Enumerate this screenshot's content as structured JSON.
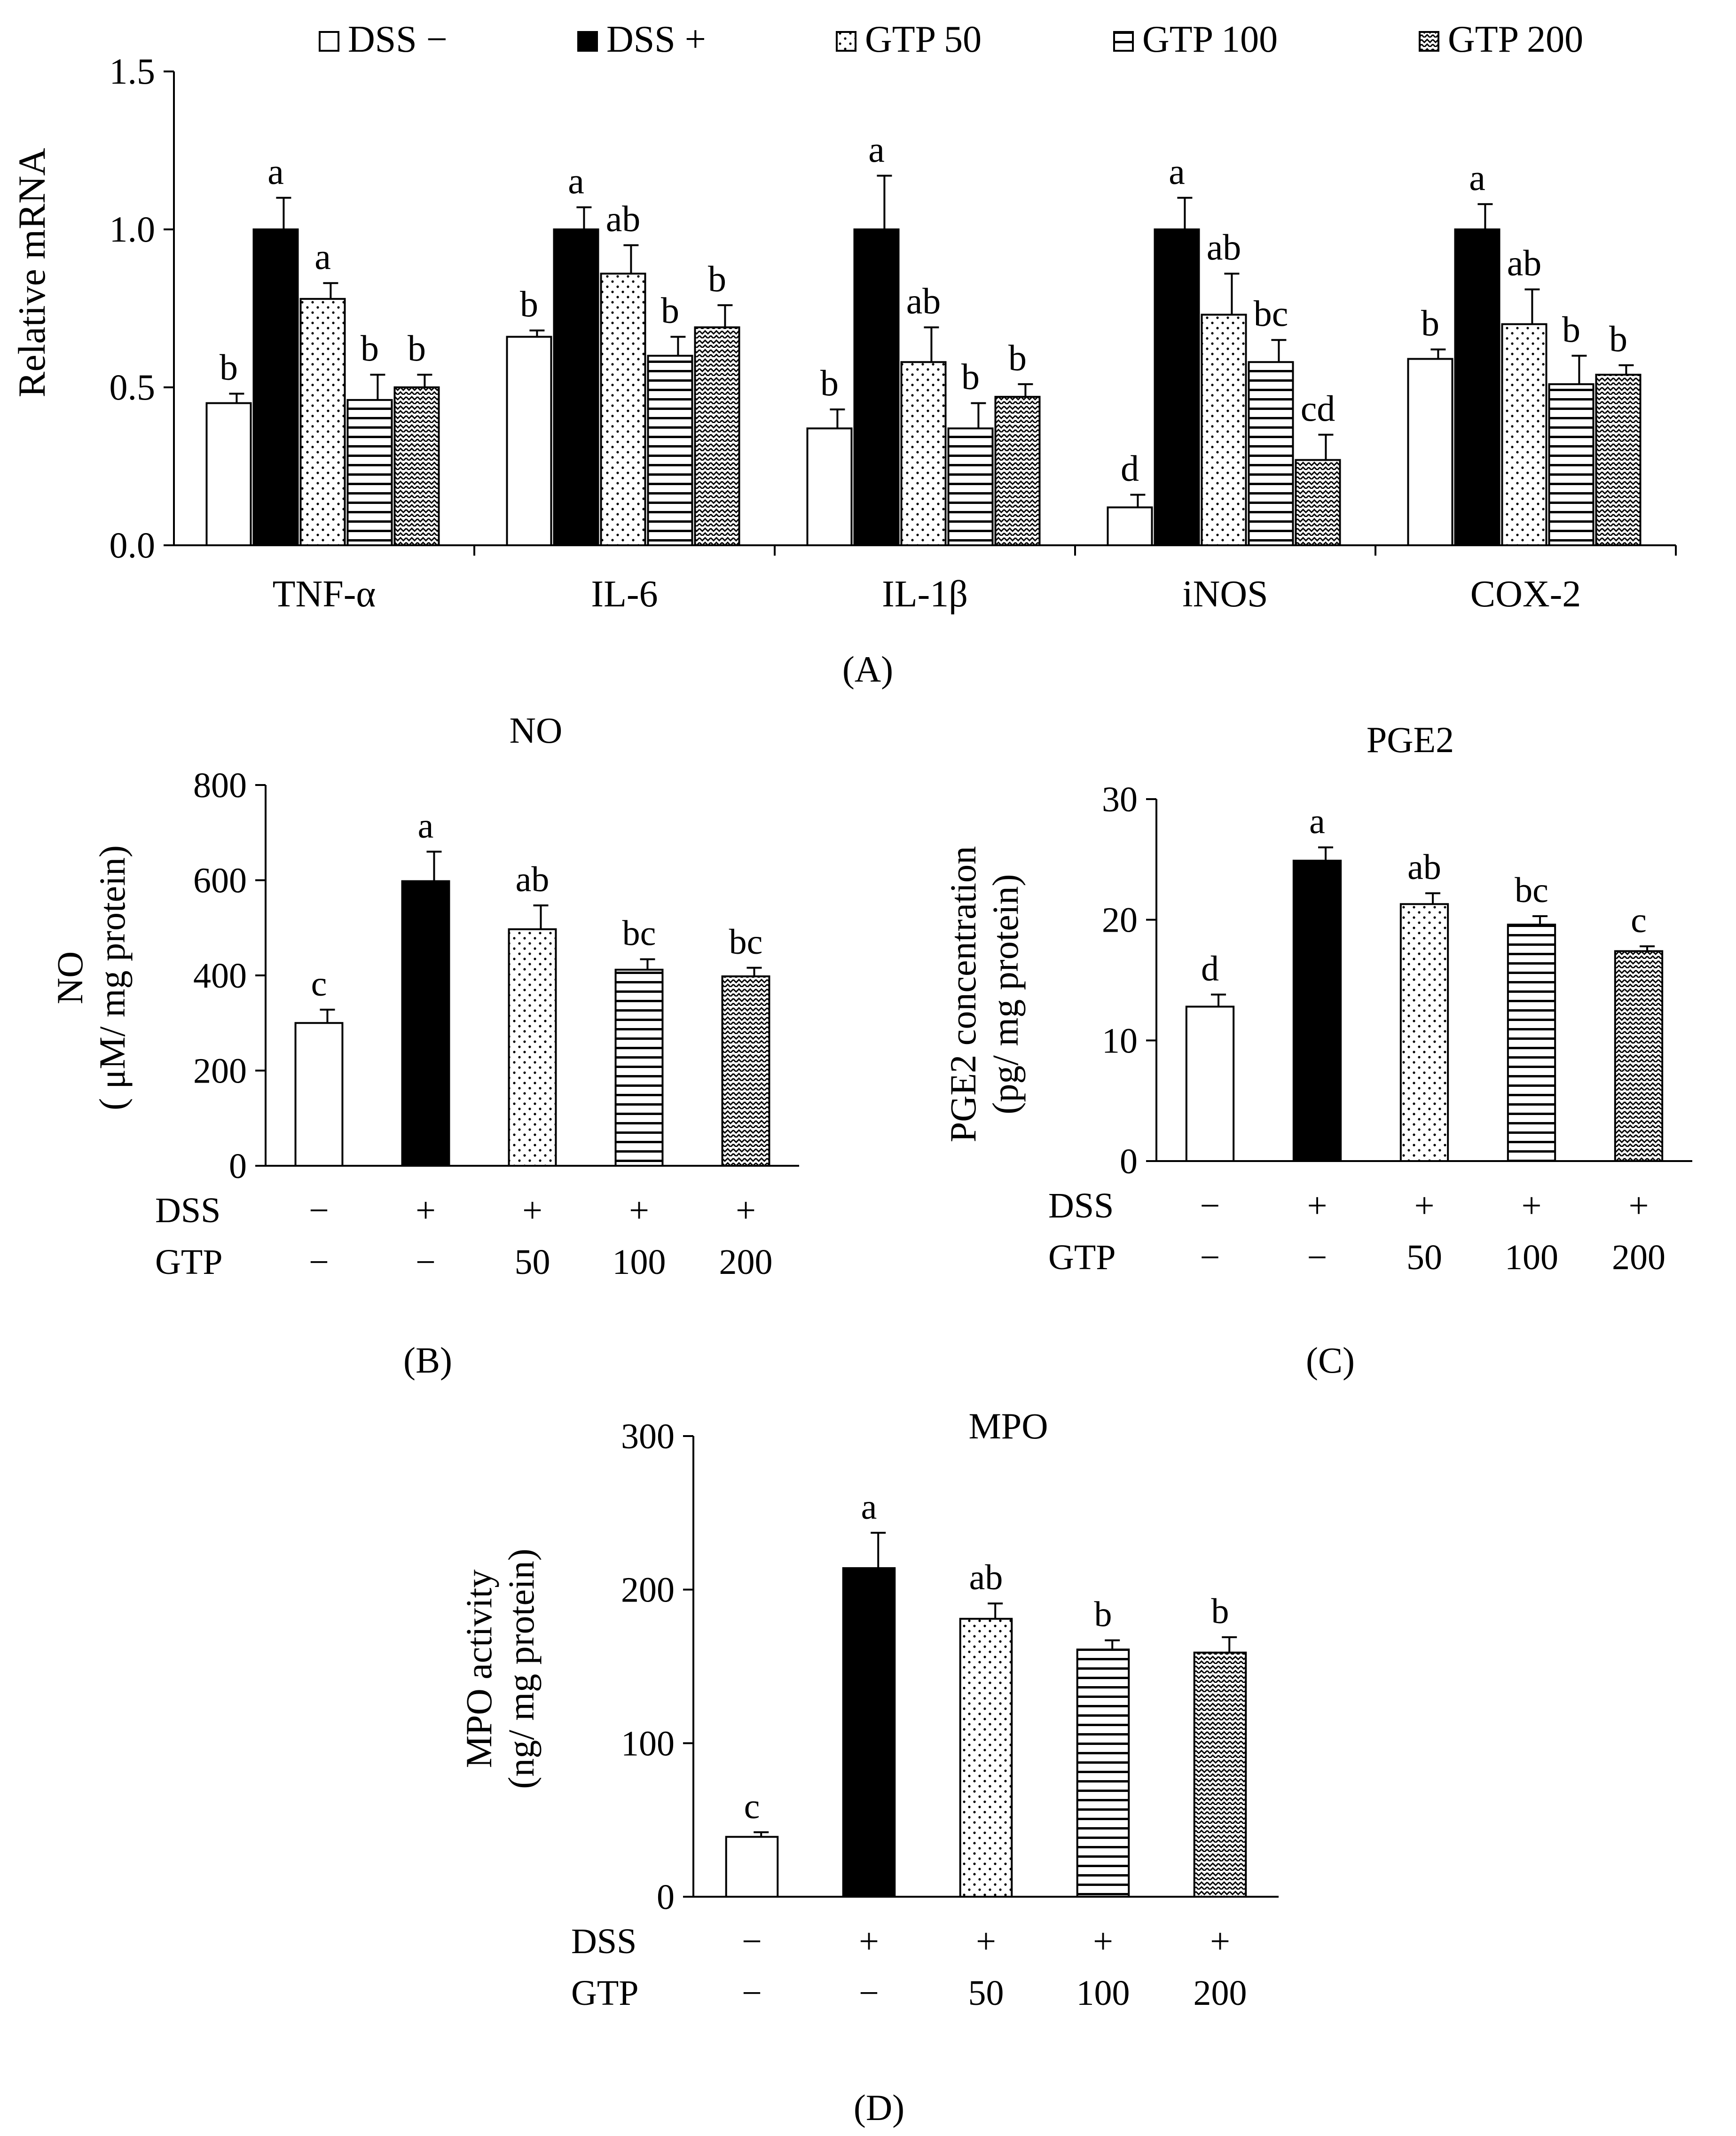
{
  "legend": {
    "entries": [
      {
        "label": "DSS −",
        "pattern": "white"
      },
      {
        "label": "DSS +",
        "pattern": "black"
      },
      {
        "label": "GTP 50",
        "pattern": "dots"
      },
      {
        "label": "GTP 100",
        "pattern": "hlines"
      },
      {
        "label": "GTP 200",
        "pattern": "zigzag"
      }
    ]
  },
  "colors": {
    "bar_stroke": "#000000",
    "black_fill": "#000000",
    "white_fill": "#ffffff"
  },
  "panel_labels": {
    "a": "(A)",
    "b": "(B)",
    "c": "(C)",
    "d": "(D)"
  },
  "chart_data": [
    {
      "id": "A",
      "type": "bar",
      "title": "",
      "ylabel": "Relative mRNA",
      "xlabel": "",
      "ylim": [
        0,
        1.5
      ],
      "yticks": [
        "0.0",
        "0.5",
        "1.0",
        "1.5"
      ],
      "ytick_values": [
        0,
        0.5,
        1.0,
        1.5
      ],
      "categories": [
        "TNF-α",
        "IL-6",
        "IL-1β",
        "iNOS",
        "COX-2"
      ],
      "series": [
        {
          "name": "DSS −",
          "pattern": "white",
          "values": [
            0.45,
            0.66,
            0.37,
            0.12,
            0.59
          ],
          "errors": [
            0.03,
            0.02,
            0.06,
            0.04,
            0.03
          ],
          "labels": [
            "b",
            "b",
            "b",
            "d",
            "b"
          ]
        },
        {
          "name": "DSS +",
          "pattern": "black",
          "values": [
            1.0,
            1.0,
            1.0,
            1.0,
            1.0
          ],
          "errors": [
            0.1,
            0.07,
            0.17,
            0.1,
            0.08
          ],
          "labels": [
            "a",
            "a",
            "a",
            "a",
            "a"
          ]
        },
        {
          "name": "GTP 50",
          "pattern": "dots",
          "values": [
            0.78,
            0.86,
            0.58,
            0.73,
            0.7
          ],
          "errors": [
            0.05,
            0.09,
            0.11,
            0.13,
            0.11
          ],
          "labels": [
            "a",
            "ab",
            "ab",
            "ab",
            "ab"
          ]
        },
        {
          "name": "GTP 100",
          "pattern": "hlines",
          "values": [
            0.46,
            0.6,
            0.37,
            0.58,
            0.51
          ],
          "errors": [
            0.08,
            0.06,
            0.08,
            0.07,
            0.09
          ],
          "labels": [
            "b",
            "b",
            "b",
            "bc",
            "b"
          ]
        },
        {
          "name": "GTP 200",
          "pattern": "zigzag",
          "values": [
            0.5,
            0.69,
            0.47,
            0.27,
            0.54
          ],
          "errors": [
            0.04,
            0.07,
            0.04,
            0.08,
            0.03
          ],
          "labels": [
            "b",
            "b",
            "b",
            "cd",
            "b"
          ]
        }
      ]
    },
    {
      "id": "B",
      "type": "bar",
      "title": "NO",
      "ylabel": "NO",
      "ylabel2": "( μM/ mg protein)",
      "ylim": [
        0,
        800
      ],
      "yticks": [
        "0",
        "200",
        "400",
        "600",
        "800"
      ],
      "ytick_values": [
        0,
        200,
        400,
        600,
        800
      ],
      "row_labels": [
        "DSS",
        "GTP"
      ],
      "dss": [
        "−",
        "+",
        "+",
        "+",
        "+"
      ],
      "gtp": [
        "−",
        "−",
        "50",
        "100",
        "200"
      ],
      "patterns": [
        "white",
        "black",
        "dots",
        "hlines",
        "zigzag"
      ],
      "values": [
        300,
        598,
        497,
        412,
        398
      ],
      "errors": [
        28,
        62,
        50,
        22,
        18
      ],
      "labels": [
        "c",
        "a",
        "ab",
        "bc",
        "bc"
      ]
    },
    {
      "id": "C",
      "type": "bar",
      "title": "PGE2",
      "ylabel": "PGE2 concentration",
      "ylabel2": "(pg/ mg protein)",
      "ylim": [
        0,
        30
      ],
      "yticks": [
        "0",
        "10",
        "20",
        "30"
      ],
      "ytick_values": [
        0,
        10,
        20,
        30
      ],
      "row_labels": [
        "DSS",
        "GTP"
      ],
      "dss": [
        "−",
        "+",
        "+",
        "+",
        "+"
      ],
      "gtp": [
        "−",
        "−",
        "50",
        "100",
        "200"
      ],
      "patterns": [
        "white",
        "black",
        "dots",
        "hlines",
        "zigzag"
      ],
      "values": [
        12.8,
        24.9,
        21.3,
        19.6,
        17.4
      ],
      "errors": [
        1.0,
        1.1,
        0.9,
        0.7,
        0.4
      ],
      "labels": [
        "d",
        "a",
        "ab",
        "bc",
        "c"
      ]
    },
    {
      "id": "D",
      "type": "bar",
      "title": "MPO",
      "ylabel": "MPO activity",
      "ylabel2": "(ng/ mg protein)",
      "ylim": [
        0,
        300
      ],
      "yticks": [
        "0",
        "100",
        "200",
        "300"
      ],
      "ytick_values": [
        0,
        100,
        200,
        300
      ],
      "row_labels": [
        "DSS",
        "GTP"
      ],
      "dss": [
        "−",
        "+",
        "+",
        "+",
        "+"
      ],
      "gtp": [
        "−",
        "−",
        "50",
        "100",
        "200"
      ],
      "patterns": [
        "white",
        "black",
        "dots",
        "hlines",
        "zigzag"
      ],
      "values": [
        39,
        214,
        181,
        161,
        159
      ],
      "errors": [
        3,
        23,
        10,
        6,
        10
      ],
      "labels": [
        "c",
        "a",
        "ab",
        "b",
        "b"
      ]
    }
  ]
}
